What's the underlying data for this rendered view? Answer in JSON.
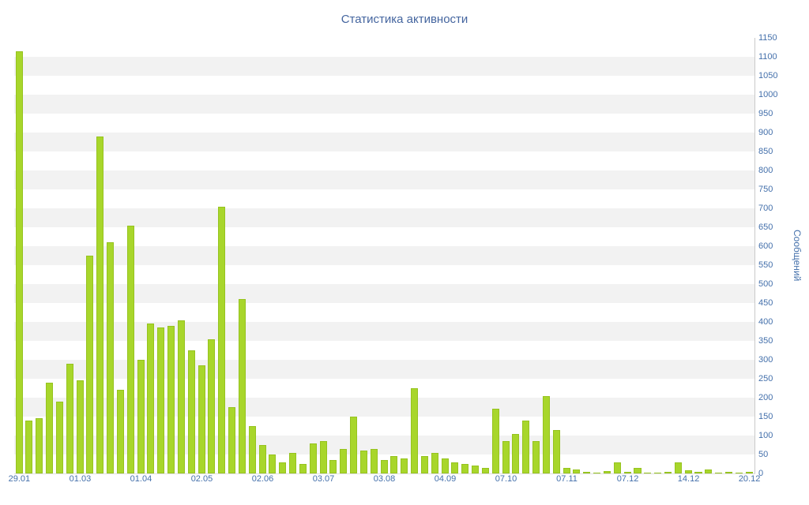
{
  "title": "Статистика активности",
  "colors": {
    "bar": "#a8d62b",
    "bar_edge": "#96c31f",
    "axis_text": "#4470ab",
    "title_text": "#44659f",
    "band_light": "#f2f2f2",
    "band_white": "#ffffff"
  },
  "chart_data": {
    "type": "bar",
    "title": "Статистика активности",
    "xlabel": "",
    "ylabel": "Сообщений",
    "ylim": [
      0,
      1150
    ],
    "ytick_step": 50,
    "grid": "alternating-horizontal-bands",
    "legend": "none",
    "label_every": 6,
    "categories": [
      "29.01",
      "01.03",
      "01.04",
      "02.05",
      "02.06",
      "03.07",
      "03.08",
      "04.09",
      "07.10",
      "07.11",
      "07.12",
      "14.12",
      "20.12"
    ],
    "values": [
      1115,
      140,
      145,
      240,
      190,
      290,
      245,
      575,
      890,
      610,
      220,
      655,
      300,
      395,
      385,
      390,
      405,
      325,
      285,
      355,
      705,
      175,
      460,
      125,
      75,
      50,
      30,
      55,
      25,
      80,
      85,
      35,
      65,
      150,
      60,
      65,
      35,
      45,
      40,
      225,
      45,
      55,
      40,
      30,
      25,
      20,
      15,
      170,
      85,
      105,
      140,
      85,
      205,
      115,
      15,
      10,
      4,
      3,
      6,
      30,
      5,
      15,
      3,
      2,
      4,
      30,
      8,
      5,
      10,
      3,
      4,
      3,
      5
    ]
  }
}
